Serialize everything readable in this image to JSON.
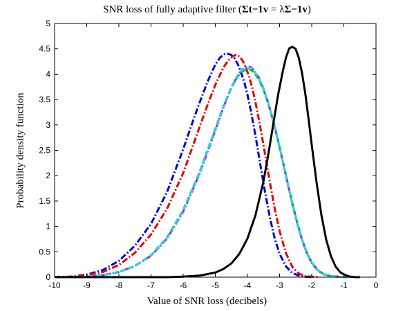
{
  "chart_data": {
    "type": "line",
    "title": {
      "text": "SNR loss of fully adaptive filter ",
      "math_open": "(",
      "math_sigma_t_inv_v": "Σt−1v",
      "math_eq": " = λ",
      "math_sigma_inv_v": "Σ−1v",
      "math_close": ")"
    },
    "xlabel": "Value of SNR loss (decibels)",
    "ylabel": "Probability density function",
    "xlim": [
      -10,
      0
    ],
    "ylim": [
      0,
      5
    ],
    "xticks": [
      "-10",
      "-9",
      "-8",
      "-7",
      "-6",
      "-5",
      "-4",
      "-3",
      "-2",
      "-1",
      "0"
    ],
    "yticks": [
      "0",
      "0.5",
      "1",
      "1.5",
      "2",
      "2.5",
      "3",
      "3.5",
      "4",
      "4.5",
      "5"
    ],
    "grid": false,
    "series": [
      {
        "color": "#0000e6",
        "style": "dashdot",
        "x": [
          -10,
          -9.5,
          -9,
          -8.5,
          -8,
          -7.5,
          -7,
          -6.5,
          -6,
          -5.75,
          -5.5,
          -5.25,
          -5,
          -4.85,
          -4.7,
          -4.6,
          -4.5,
          -4.4,
          -4.3,
          -4.2,
          -4.1,
          -4.0,
          -3.9,
          -3.75,
          -3.6,
          -3.45,
          -3.3,
          -3.15,
          -3.0,
          -2.8,
          -2.6,
          -2.4,
          -2.2,
          -2.0
        ],
        "y": [
          0.0,
          0.01,
          0.05,
          0.14,
          0.32,
          0.62,
          1.05,
          1.68,
          2.52,
          2.98,
          3.42,
          3.84,
          4.19,
          4.33,
          4.4,
          4.4,
          4.38,
          4.31,
          4.2,
          4.04,
          3.85,
          3.6,
          3.3,
          2.79,
          2.22,
          1.67,
          1.17,
          0.76,
          0.46,
          0.21,
          0.08,
          0.03,
          0.01,
          0.0
        ]
      },
      {
        "color": "#e60000",
        "style": "dashdot",
        "x": [
          -10,
          -9.5,
          -9,
          -8.5,
          -8,
          -7.5,
          -7,
          -6.5,
          -6,
          -5.5,
          -5.25,
          -5,
          -4.75,
          -4.6,
          -4.45,
          -4.35,
          -4.25,
          -4.15,
          -4.05,
          -3.95,
          -3.85,
          -3.75,
          -3.6,
          -3.45,
          -3.3,
          -3.15,
          -3.0,
          -2.8,
          -2.6,
          -2.4,
          -2.2,
          -2.0,
          -1.8
        ],
        "y": [
          0.0,
          0.01,
          0.04,
          0.1,
          0.24,
          0.48,
          0.84,
          1.35,
          2.05,
          2.94,
          3.38,
          3.79,
          4.13,
          4.27,
          4.36,
          4.38,
          4.35,
          4.27,
          4.13,
          3.96,
          3.73,
          3.45,
          2.96,
          2.42,
          1.86,
          1.35,
          0.91,
          0.47,
          0.2,
          0.07,
          0.02,
          0.01,
          0.0
        ]
      },
      {
        "color": "#808080",
        "style": "dashed",
        "x": [
          -10,
          -9.5,
          -9,
          -8.5,
          -8,
          -7.5,
          -7,
          -6.5,
          -6,
          -5.5,
          -5,
          -4.75,
          -4.5,
          -4.3,
          -4.15,
          -4.0,
          -3.9,
          -3.8,
          -3.65,
          -3.5,
          -3.35,
          -3.2,
          -3.05,
          -2.9,
          -2.75,
          -2.6,
          -2.45,
          -2.3,
          -2.15,
          -2.0,
          -1.8,
          -1.6,
          -1.4,
          -1.2,
          -1.0,
          -0.8
        ],
        "y": [
          0.0,
          0.0,
          0.01,
          0.04,
          0.1,
          0.22,
          0.43,
          0.78,
          1.32,
          2.05,
          2.92,
          3.36,
          3.74,
          3.96,
          4.06,
          4.1,
          4.09,
          4.04,
          3.91,
          3.7,
          3.42,
          3.08,
          2.7,
          2.29,
          1.86,
          1.45,
          1.07,
          0.74,
          0.48,
          0.29,
          0.13,
          0.05,
          0.02,
          0.01,
          0.0,
          0.0
        ]
      },
      {
        "color": "#00c800",
        "style": "dashed",
        "x": [
          -10,
          -9.5,
          -9,
          -8.5,
          -8,
          -7.5,
          -7,
          -6.5,
          -6,
          -5.5,
          -5,
          -4.75,
          -4.5,
          -4.3,
          -4.15,
          -4.0,
          -3.9,
          -3.8,
          -3.65,
          -3.5,
          -3.35,
          -3.2,
          -3.05,
          -2.9,
          -2.75,
          -2.6,
          -2.45,
          -2.3,
          -2.15,
          -2.0,
          -1.8,
          -1.6,
          -1.4,
          -1.2,
          -1.0,
          -0.8
        ],
        "y": [
          0.0,
          0.0,
          0.01,
          0.04,
          0.1,
          0.22,
          0.43,
          0.78,
          1.32,
          2.05,
          2.92,
          3.36,
          3.74,
          3.96,
          4.06,
          4.1,
          4.09,
          4.04,
          3.91,
          3.7,
          3.42,
          3.08,
          2.7,
          2.29,
          1.86,
          1.45,
          1.07,
          0.74,
          0.48,
          0.29,
          0.13,
          0.05,
          0.02,
          0.01,
          0.0,
          0.0
        ]
      },
      {
        "color": "#e600e6",
        "style": "dashdot",
        "x": [
          -10,
          -9.5,
          -9,
          -8.5,
          -8,
          -7.5,
          -7,
          -6.5,
          -6,
          -5.5,
          -5,
          -4.75,
          -4.5,
          -4.3,
          -4.15,
          -4.0,
          -3.9,
          -3.8,
          -3.65,
          -3.5,
          -3.35,
          -3.2,
          -3.05,
          -2.9,
          -2.75,
          -2.6,
          -2.45,
          -2.3,
          -2.15,
          -2.0,
          -1.8,
          -1.6,
          -1.4,
          -1.2,
          -1.0,
          -0.8
        ],
        "y": [
          0.0,
          0.0,
          0.01,
          0.04,
          0.1,
          0.22,
          0.42,
          0.76,
          1.29,
          2.02,
          2.89,
          3.34,
          3.74,
          3.98,
          4.1,
          4.15,
          4.14,
          4.08,
          3.94,
          3.72,
          3.43,
          3.08,
          2.7,
          2.28,
          1.85,
          1.44,
          1.06,
          0.73,
          0.47,
          0.28,
          0.12,
          0.05,
          0.02,
          0.01,
          0.0,
          0.0
        ]
      },
      {
        "color": "#00e6e6",
        "style": "dashed",
        "x": [
          -10,
          -9.5,
          -9,
          -8.5,
          -8,
          -7.5,
          -7,
          -6.5,
          -6,
          -5.5,
          -5,
          -4.75,
          -4.5,
          -4.3,
          -4.15,
          -4.0,
          -3.9,
          -3.8,
          -3.65,
          -3.5,
          -3.35,
          -3.2,
          -3.05,
          -2.9,
          -2.75,
          -2.6,
          -2.45,
          -2.3,
          -2.15,
          -2.0,
          -1.8,
          -1.6,
          -1.4,
          -1.2,
          -1.0,
          -0.8
        ],
        "y": [
          0.0,
          0.0,
          0.01,
          0.04,
          0.1,
          0.22,
          0.43,
          0.77,
          1.31,
          2.04,
          2.91,
          3.36,
          3.75,
          3.98,
          4.09,
          4.13,
          4.12,
          4.07,
          3.93,
          3.71,
          3.43,
          3.08,
          2.7,
          2.29,
          1.86,
          1.45,
          1.07,
          0.74,
          0.48,
          0.29,
          0.13,
          0.05,
          0.02,
          0.01,
          0.0,
          0.0
        ]
      },
      {
        "color": "#000000",
        "style": "solid",
        "x": [
          -10,
          -9.5,
          -9,
          -8.5,
          -8,
          -7.5,
          -7,
          -6.5,
          -6,
          -5.5,
          -5,
          -4.75,
          -4.5,
          -4.25,
          -4.0,
          -3.75,
          -3.5,
          -3.35,
          -3.2,
          -3.05,
          -2.9,
          -2.8,
          -2.7,
          -2.6,
          -2.5,
          -2.4,
          -2.3,
          -2.2,
          -2.1,
          -2.0,
          -1.85,
          -1.7,
          -1.55,
          -1.4,
          -1.25,
          -1.1,
          -0.95,
          -0.8,
          -0.65,
          -0.5
        ],
        "y": [
          0.0,
          0.0,
          0.0,
          0.0,
          0.0,
          0.0,
          0.0,
          0.0,
          0.01,
          0.03,
          0.09,
          0.16,
          0.27,
          0.46,
          0.76,
          1.22,
          1.89,
          2.42,
          3.0,
          3.58,
          4.06,
          4.33,
          4.51,
          4.54,
          4.5,
          4.32,
          4.02,
          3.62,
          3.13,
          2.61,
          1.87,
          1.23,
          0.74,
          0.41,
          0.2,
          0.09,
          0.04,
          0.01,
          0.0,
          0.0
        ]
      }
    ]
  }
}
